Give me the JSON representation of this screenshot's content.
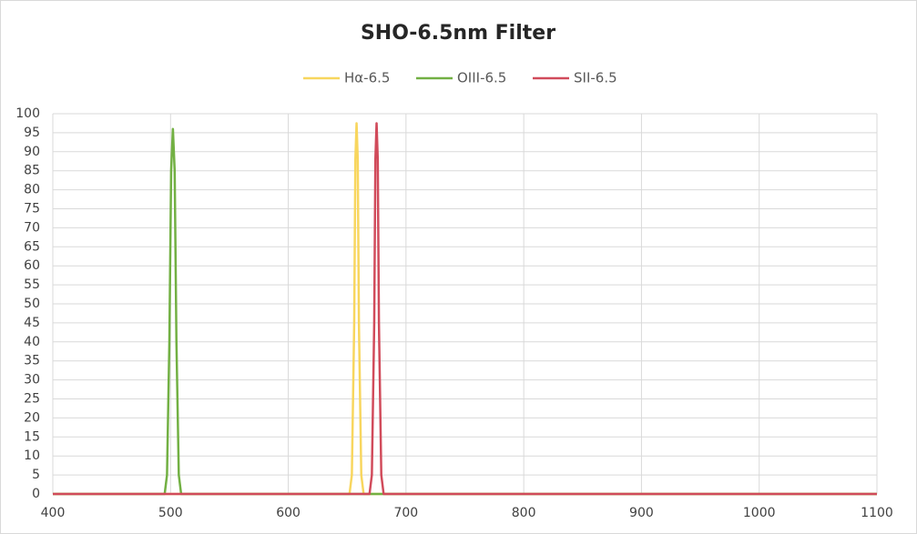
{
  "chart_data": {
    "type": "line",
    "title": "SHO-6.5nm Filter",
    "xlim": [
      400,
      1100
    ],
    "xticks": [
      400,
      500,
      600,
      700,
      800,
      900,
      1000,
      1100
    ],
    "ylim": [
      0,
      100
    ],
    "yticks": [
      0,
      5,
      10,
      15,
      20,
      25,
      30,
      35,
      40,
      45,
      50,
      55,
      60,
      65,
      70,
      75,
      80,
      85,
      90,
      95,
      100
    ],
    "grid": true,
    "legend": "top",
    "series": [
      {
        "name": "Hα-6.5",
        "color": "#f8d65e",
        "x": [
          400,
          652,
          654,
          656,
          657,
          658,
          659,
          660,
          662,
          664,
          1100
        ],
        "values": [
          0,
          0,
          5,
          45,
          88,
          97.5,
          88,
          45,
          5,
          0,
          0
        ]
      },
      {
        "name": "OIII-6.5",
        "color": "#72b043",
        "x": [
          400,
          495,
          497,
          499,
          500.5,
          502,
          503.5,
          505,
          507,
          509,
          1100
        ],
        "values": [
          0,
          0,
          5,
          40,
          85,
          96,
          85,
          40,
          5,
          0,
          0
        ]
      },
      {
        "name": "SII-6.5",
        "color": "#d14b5b",
        "x": [
          400,
          669,
          671,
          673,
          674,
          675,
          676,
          677,
          679,
          681,
          1100
        ],
        "values": [
          0,
          0,
          5,
          45,
          88,
          97.5,
          88,
          45,
          5,
          0,
          0
        ]
      }
    ]
  }
}
